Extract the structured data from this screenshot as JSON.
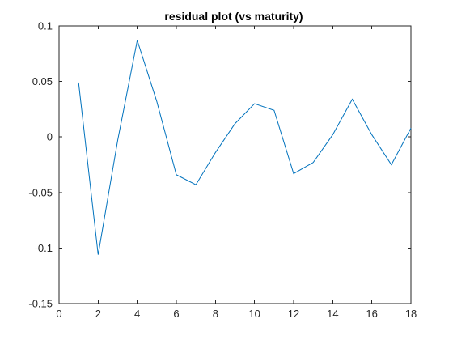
{
  "chart_data": {
    "type": "line",
    "title": "residual plot (vs maturity)",
    "xlabel": "",
    "ylabel": "",
    "xlim": [
      0,
      18
    ],
    "ylim": [
      -0.15,
      0.1
    ],
    "x_ticks": [
      0,
      2,
      4,
      6,
      8,
      10,
      12,
      14,
      16,
      18
    ],
    "y_ticks": [
      -0.15,
      -0.1,
      -0.05,
      0,
      0.05,
      0.1
    ],
    "y_tick_labels": [
      "-0.15",
      "-0.1",
      "-0.05",
      "0",
      "0.05",
      "0.1"
    ],
    "grid": false,
    "series": [
      {
        "color": "#0072BD",
        "x": [
          1,
          2,
          3,
          4,
          5,
          6,
          7,
          8,
          9,
          10,
          11,
          12,
          13,
          14,
          15,
          16,
          17,
          18
        ],
        "y": [
          0.049,
          -0.106,
          -0.003,
          0.087,
          0.032,
          -0.034,
          -0.043,
          -0.014,
          0.012,
          0.03,
          0.024,
          -0.033,
          -0.023,
          0.002,
          0.034,
          0.002,
          -0.025,
          0.008
        ]
      }
    ]
  }
}
